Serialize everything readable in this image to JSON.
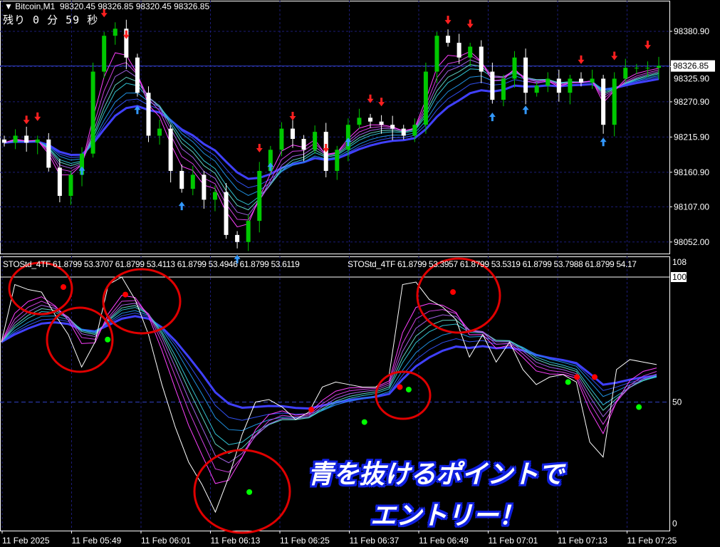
{
  "header": {
    "symbol_label": "Bitcoin,M1",
    "ohlc": "98320.45 98326.85 98320.45 98326.85",
    "timer": "残り 0 分 59 秒"
  },
  "indicator": {
    "label_1": "STOStd_4TF 61.8799 53.3707 61.8799 53.4113 61.8799 53.4946 61.8799 53.6119",
    "label_2": "STOStd_4TF 61.8799 53.3957 61.8799 53.5319 61.8799 53.7988 61.8799 54.17"
  },
  "annotation": {
    "line1": "青を抜けるポイントで",
    "line2": "エントリー！"
  },
  "colors": {
    "background": "#000000",
    "grid": "#1c1c78",
    "bull_candle": "#00c800",
    "bear_candle": "#ffffff",
    "circle": "#e00000",
    "signal_up": "#3399ff",
    "signal_down": "#ff2020",
    "dot_red": "#ff0000",
    "dot_green": "#00ff00"
  },
  "chart_data": [
    {
      "type": "candlestick",
      "title": "Bitcoin,M1",
      "y_ticks": [
        "98380.90",
        "98325.90",
        "98270.90",
        "98215.90",
        "98160.90",
        "98107.00",
        "98052.00"
      ],
      "y_tick_values": [
        98380.9,
        98325.9,
        98270.9,
        98215.9,
        98160.9,
        98107.0,
        98052.0
      ],
      "ylim": [
        98035,
        98430
      ],
      "current_price": "98326.85",
      "x_ticks": [
        "11 Feb 2025",
        "11 Feb 05:49",
        "11 Feb 06:01",
        "11 Feb 06:13",
        "11 Feb 06:25",
        "11 Feb 06:37",
        "11 Feb 06:49",
        "11 Feb 07:01",
        "11 Feb 07:13",
        "11 Feb 07:25"
      ],
      "closes": [
        98207,
        98218,
        98207,
        98212,
        98168,
        98124,
        98157,
        98190,
        98318,
        98374,
        98385,
        98340,
        98285,
        98218,
        98229,
        98163,
        98135,
        98157,
        98118,
        98130,
        98063,
        98052,
        98085,
        98163,
        98196,
        98229,
        98213,
        98196,
        98224,
        98163,
        98196,
        98235,
        98246,
        98240,
        98235,
        98229,
        98218,
        98235,
        98318,
        98374,
        98363,
        98340,
        98357,
        98318,
        98274,
        98307,
        98340,
        98285,
        98296,
        98307,
        98285,
        98307,
        98301,
        98307,
        98235,
        98307,
        98324,
        98324,
        98324,
        98327
      ],
      "down_arrows_at": [
        2,
        3,
        9,
        11,
        23,
        26,
        29,
        33,
        34,
        40,
        42,
        52,
        55,
        58
      ],
      "up_arrows_at": [
        7,
        12,
        16,
        21,
        24,
        31,
        44,
        47,
        54
      ]
    },
    {
      "type": "line",
      "title": "STOStd_4TF",
      "y_ticks": [
        "108",
        "100",
        "50",
        "0"
      ],
      "y_tick_values": [
        108,
        100,
        50,
        0
      ],
      "ylim": [
        0,
        108
      ],
      "values": [
        74,
        97,
        95,
        94,
        85,
        77,
        64,
        74,
        97,
        100,
        91,
        77,
        57,
        40,
        26,
        17,
        6,
        20,
        37,
        50,
        51,
        48,
        43,
        46,
        56,
        58,
        57,
        56,
        56,
        61,
        97,
        98,
        91,
        88,
        83,
        68,
        77,
        66,
        74,
        63,
        57,
        60,
        61,
        58,
        34,
        28,
        63,
        67,
        66,
        65
      ],
      "red_dots": [
        [
          7,
          96
        ],
        [
          14,
          93
        ],
        [
          35,
          47
        ],
        [
          45,
          56
        ],
        [
          51,
          94
        ],
        [
          65,
          60
        ],
        [
          67,
          60
        ]
      ],
      "green_dots": [
        [
          12,
          75
        ],
        [
          28,
          14
        ],
        [
          41,
          42
        ],
        [
          46,
          55
        ],
        [
          64,
          58
        ],
        [
          72,
          48
        ]
      ]
    }
  ]
}
